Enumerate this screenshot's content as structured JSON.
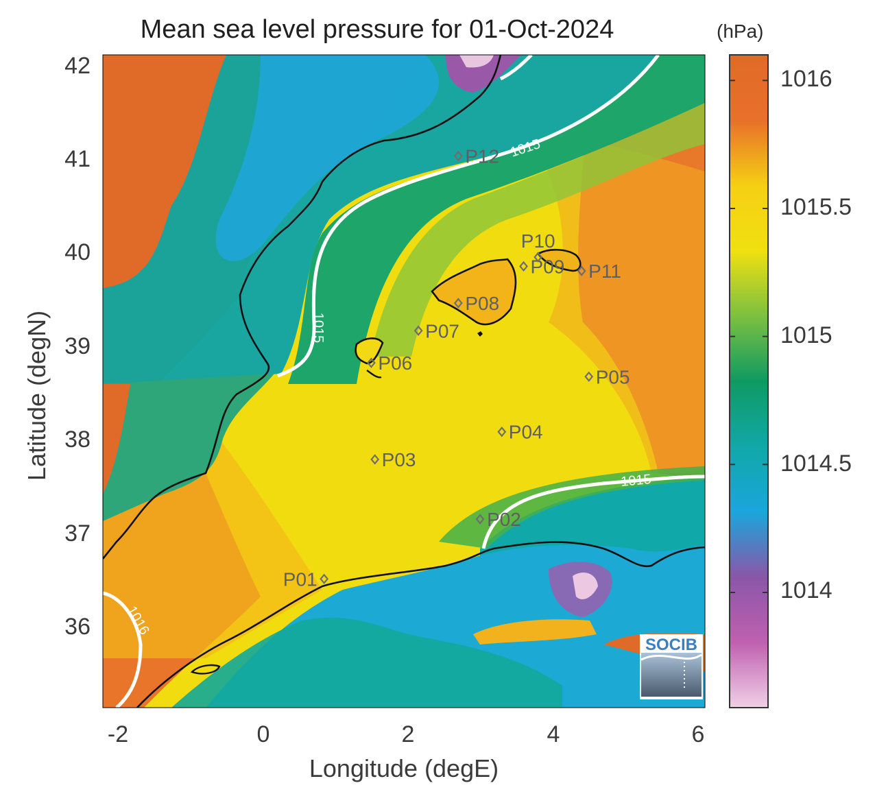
{
  "title": "Mean sea level pressure for 01-Oct-2024",
  "colorbar_units": "(hPa)",
  "xlabel": "Longitude (degE)",
  "ylabel": "Latitude (degN)",
  "logo_text": "SOCIB",
  "x_ticks": [
    "-2",
    "0",
    "2",
    "4",
    "6"
  ],
  "y_ticks": [
    "36",
    "37",
    "38",
    "39",
    "40",
    "41",
    "42"
  ],
  "colorbar_ticks": [
    "1014",
    "1014.5",
    "1015",
    "1015.5",
    "1016"
  ],
  "chart_data": {
    "type": "heatmap",
    "title": "Mean sea level pressure for 01-Oct-2024",
    "xlabel": "Longitude (degE)",
    "ylabel": "Latitude (degN)",
    "units": "(hPa)",
    "xlim": [
      -2.2,
      6.1
    ],
    "ylim": [
      35.1,
      42.2
    ],
    "clim": [
      1013.55,
      1016.1
    ],
    "colormap": [
      "#f0d0e6",
      "#c060b0",
      "#8a56a8",
      "#1aa6dc",
      "#10a8a8",
      "#0f9a62",
      "#7cc040",
      "#f0e010",
      "#f6cf14",
      "#e8702a",
      "#e06a28"
    ],
    "contour_levels": [
      {
        "value": "1015",
        "color": "#ffffff"
      },
      {
        "value": "1016",
        "color": "#ffffff"
      }
    ],
    "points": [
      {
        "label": "P01",
        "lon": 0.85,
        "lat": 36.5
      },
      {
        "label": "P02",
        "lon": 3.0,
        "lat": 37.15
      },
      {
        "label": "P03",
        "lon": 1.55,
        "lat": 37.8
      },
      {
        "label": "P04",
        "lon": 3.3,
        "lat": 38.1
      },
      {
        "label": "P05",
        "lon": 4.5,
        "lat": 38.7
      },
      {
        "label": "P06",
        "lon": 1.5,
        "lat": 38.85
      },
      {
        "label": "P07",
        "lon": 2.15,
        "lat": 39.2
      },
      {
        "label": "P08",
        "lon": 2.7,
        "lat": 39.5
      },
      {
        "label": "P09",
        "lon": 3.6,
        "lat": 39.9
      },
      {
        "label": "P10",
        "lon": 3.8,
        "lat": 40.0
      },
      {
        "label": "P11",
        "lon": 4.4,
        "lat": 39.85
      },
      {
        "label": "P12",
        "lon": 2.7,
        "lat": 41.1
      }
    ]
  }
}
